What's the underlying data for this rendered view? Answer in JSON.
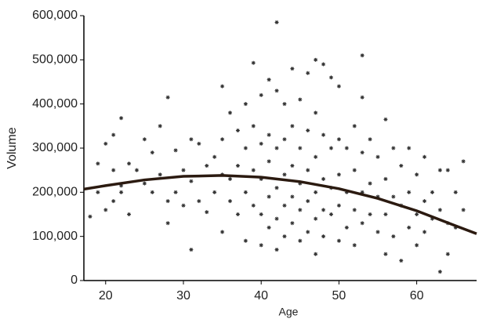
{
  "chart_data": {
    "type": "scatter",
    "x_label": "Age",
    "y_label": "Volume",
    "xlim": [
      17.2,
      67.7
    ],
    "ylim": [
      0,
      600000
    ],
    "xticks": [
      20,
      30,
      40,
      50,
      60
    ],
    "yticks": [
      0,
      {
        "value": 100000,
        "label": "100,000"
      },
      {
        "value": 200000,
        "label": "200,000"
      },
      {
        "value": 300000,
        "label": "300,000"
      },
      {
        "value": 400000,
        "label": "400,000"
      },
      {
        "value": 500000,
        "label": "500,000"
      },
      {
        "value": 600000,
        "label": "600,000"
      }
    ],
    "color": "#333333",
    "x": [
      18,
      19,
      19,
      20,
      20,
      21,
      21,
      21,
      22,
      22,
      22,
      23,
      23,
      24,
      25,
      25,
      26,
      26,
      27,
      27,
      28,
      28,
      28,
      29,
      29,
      30,
      30,
      31,
      31,
      31,
      32,
      32,
      33,
      33,
      34,
      34,
      35,
      35,
      35,
      35,
      36,
      36,
      36,
      37,
      37,
      37,
      38,
      38,
      38,
      38,
      39,
      39,
      39,
      39,
      40,
      40,
      40,
      40,
      40,
      41,
      41,
      41,
      41,
      41,
      42,
      42,
      42,
      42,
      42,
      42,
      43,
      43,
      43,
      43,
      43,
      44,
      44,
      44,
      44,
      44,
      45,
      45,
      45,
      45,
      45,
      46,
      46,
      46,
      46,
      46,
      47,
      47,
      47,
      47,
      47,
      47,
      48,
      48,
      48,
      48,
      48,
      49,
      49,
      49,
      49,
      50,
      50,
      50,
      50,
      50,
      51,
      51,
      51,
      52,
      52,
      52,
      52,
      53,
      53,
      53,
      53,
      53,
      54,
      54,
      54,
      55,
      55,
      55,
      56,
      56,
      56,
      56,
      57,
      57,
      57,
      58,
      58,
      58,
      59,
      59,
      59,
      60,
      60,
      60,
      61,
      61,
      61,
      62,
      62,
      63,
      63,
      63,
      64,
      64,
      64,
      65,
      65,
      66,
      66
    ],
    "values": [
      145000,
      265000,
      200000,
      310000,
      160000,
      330000,
      250000,
      180000,
      368000,
      215000,
      200000,
      150000,
      265000,
      250000,
      320000,
      220000,
      290000,
      200000,
      350000,
      240000,
      415000,
      180000,
      130000,
      295000,
      200000,
      250000,
      170000,
      70000,
      320000,
      225000,
      310000,
      180000,
      260000,
      155000,
      280000,
      200000,
      440000,
      320000,
      240000,
      110000,
      380000,
      230000,
      180000,
      340000,
      260000,
      150000,
      400000,
      300000,
      200000,
      90000,
      493000,
      350000,
      250000,
      170000,
      420000,
      310000,
      230000,
      150000,
      80000,
      455000,
      330000,
      270000,
      190000,
      120000,
      585000,
      430000,
      300000,
      210000,
      140000,
      70000,
      400000,
      320000,
      240000,
      170000,
      100000,
      480000,
      350000,
      260000,
      190000,
      130000,
      410000,
      300000,
      220000,
      160000,
      90000,
      470000,
      340000,
      250000,
      180000,
      110000,
      500000,
      380000,
      280000,
      200000,
      140000,
      60000,
      490000,
      330000,
      230000,
      160000,
      100000,
      460000,
      300000,
      210000,
      150000,
      440000,
      320000,
      240000,
      170000,
      90000,
      300000,
      200000,
      120000,
      350000,
      250000,
      160000,
      80000,
      510000,
      415000,
      290000,
      200000,
      130000,
      320000,
      220000,
      150000,
      280000,
      190000,
      110000,
      365000,
      230000,
      150000,
      60000,
      300000,
      190000,
      100000,
      260000,
      170000,
      45000,
      300000,
      200000,
      120000,
      240000,
      150000,
      80000,
      280000,
      180000,
      110000,
      200000,
      140000,
      250000,
      160000,
      20000,
      250000,
      130000,
      60000,
      200000,
      120000,
      270000,
      160000
    ],
    "fit": {
      "color": "#2b1a10",
      "x": [
        17.2,
        20,
        25,
        30,
        35,
        40,
        45,
        50,
        55,
        60,
        65,
        67.7
      ],
      "values": [
        207000,
        215000,
        228000,
        236000,
        238000,
        234000,
        224000,
        208000,
        186000,
        158000,
        124000,
        106000
      ]
    }
  }
}
